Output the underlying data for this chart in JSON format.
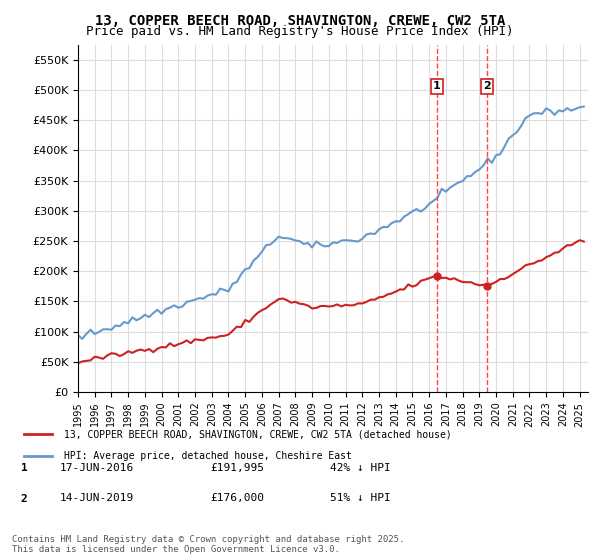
{
  "title_line1": "13, COPPER BEECH ROAD, SHAVINGTON, CREWE, CW2 5TA",
  "title_line2": "Price paid vs. HM Land Registry's House Price Index (HPI)",
  "ylabel_format": "£{0}K",
  "yticks": [
    0,
    50000,
    100000,
    150000,
    200000,
    250000,
    300000,
    350000,
    400000,
    450000,
    500000,
    550000
  ],
  "ytick_labels": [
    "£0",
    "£50K",
    "£100K",
    "£150K",
    "£200K",
    "£250K",
    "£300K",
    "£350K",
    "£400K",
    "£450K",
    "£500K",
    "£550K"
  ],
  "hpi_color": "#6699cc",
  "price_color": "#cc2222",
  "dashed_line_color": "#ff4444",
  "transaction1_date": 2016.46,
  "transaction1_price": 191995,
  "transaction2_date": 2019.45,
  "transaction2_price": 176000,
  "legend_label1": "13, COPPER BEECH ROAD, SHAVINGTON, CREWE, CW2 5TA (detached house)",
  "legend_label2": "HPI: Average price, detached house, Cheshire East",
  "table_row1": [
    "1",
    "17-JUN-2016",
    "£191,995",
    "42% ↓ HPI"
  ],
  "table_row2": [
    "2",
    "14-JUN-2019",
    "£176,000",
    "51% ↓ HPI"
  ],
  "copyright_text": "Contains HM Land Registry data © Crown copyright and database right 2025.\nThis data is licensed under the Open Government Licence v3.0.",
  "bg_color": "#ffffff",
  "plot_bg_color": "#ffffff",
  "grid_color": "#dddddd",
  "xmin": 1995,
  "xmax": 2025.5,
  "ymin": 0,
  "ymax": 575000
}
